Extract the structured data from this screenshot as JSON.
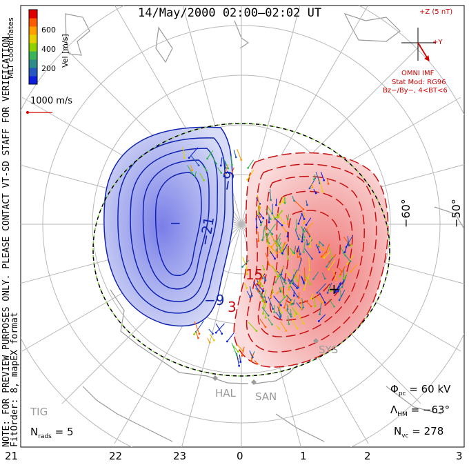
{
  "title": "14/May/2000 02:00–02:02 UT",
  "coordinates_label": "MLT coordinates",
  "colorbar": {
    "label": "Vel [m/s]",
    "ticks": [
      "600",
      "400",
      "200"
    ],
    "colors": [
      "#e00000",
      "#ff5a00",
      "#ffa000",
      "#e8d000",
      "#8fd000",
      "#3db35a",
      "#2f8a8a",
      "#2656c0",
      "#0d1ee0"
    ]
  },
  "scale_vector": "1000 m/s",
  "imf": {
    "z_label": "+Z (5 nT)",
    "y_label": "+Y",
    "source": "OMNI IMF",
    "stat_mod": "Stat Mod: RG96",
    "condition": "Bz−/By−, 4<BT<6"
  },
  "note_lines": [
    "NOTE: FOR PREVIEW PURPOSES ONLY. PLEASE CONTACT VT-SD STAFF FOR VERIFICATION.",
    "FitOrder: 8, mapEX format"
  ],
  "lat_labels": [
    "−60°",
    "−50°"
  ],
  "contour_labels": [
    "−9",
    "−21",
    "−9",
    "−",
    "15",
    "3",
    "+"
  ],
  "station_labels": [
    "HAL",
    "SAN",
    "SYS",
    "TIG"
  ],
  "stats": {
    "phi_pc": "= 60 kV",
    "lambda_hm": "= −63°",
    "n_vc": "= 278",
    "n_rads": "= 5"
  },
  "stat_symbols": {
    "phi": "Φ",
    "phi_sub": "pc",
    "lambda": "Λ",
    "lambda_sub": "HM",
    "n": "N",
    "vc_sub": "vc",
    "rads_sub": "rads"
  },
  "mlt_ticks": [
    "21",
    "22",
    "23",
    "0",
    "1",
    "2",
    "3"
  ],
  "colors": {
    "negative_contour": "#0f22b0",
    "positive_contour": "#c81010",
    "grid": "#b8b8b8",
    "coast": "#9a9a9a",
    "boundary": "#7fd23a"
  }
}
